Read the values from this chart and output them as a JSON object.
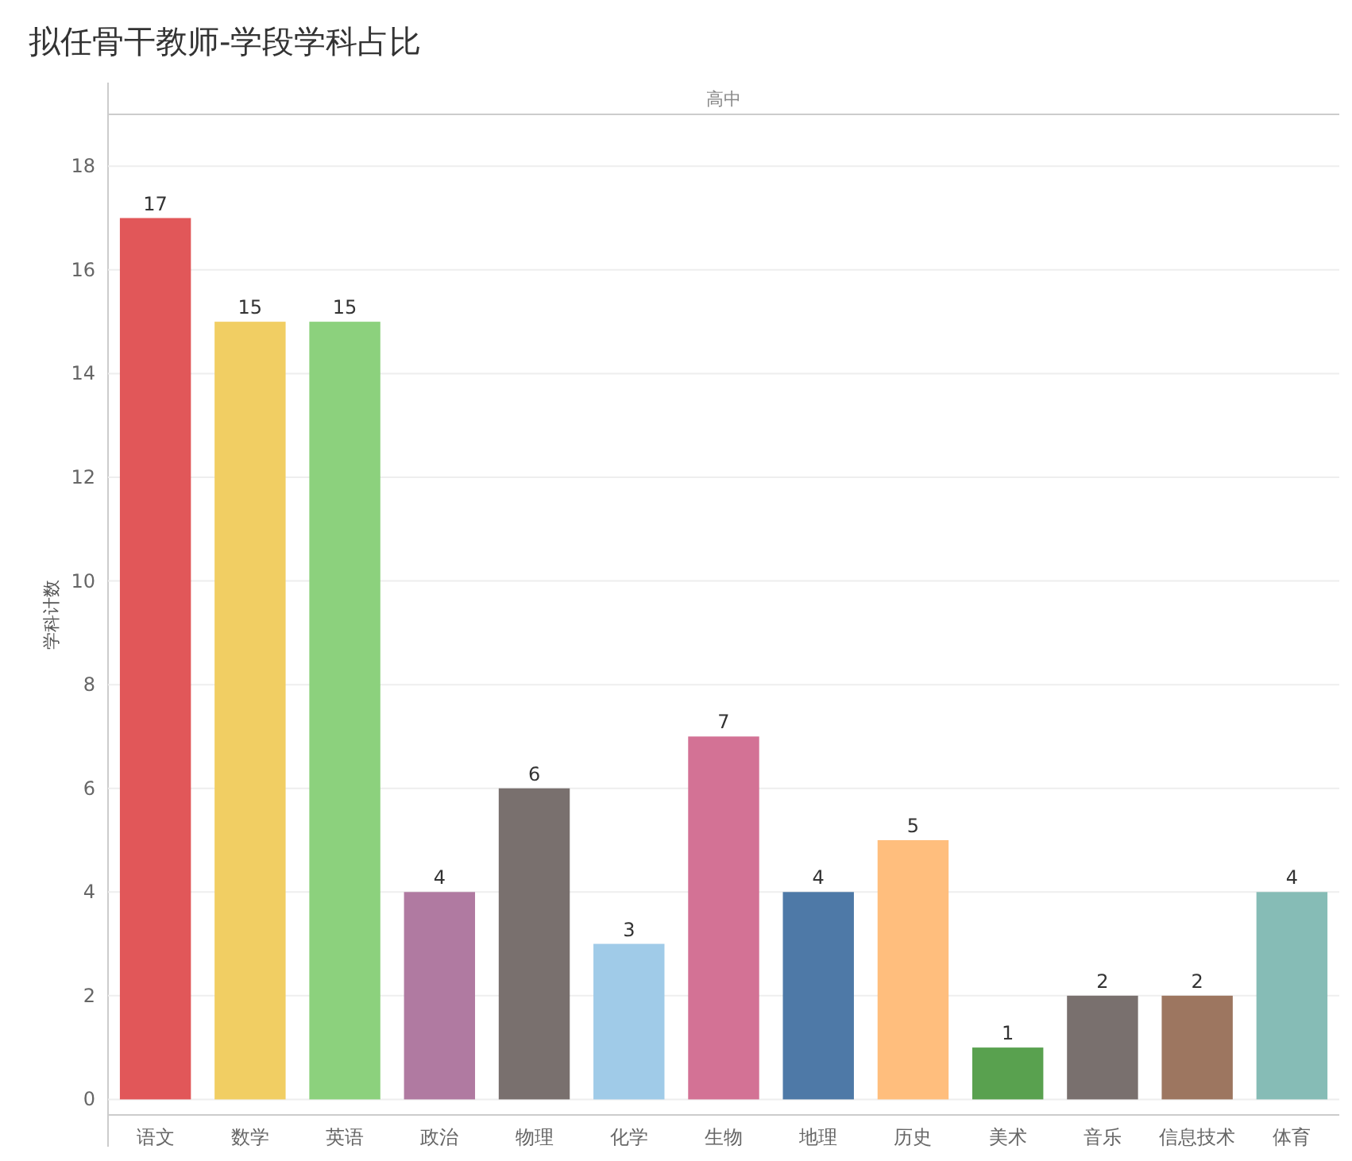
{
  "chart_data": {
    "type": "bar",
    "title": "拟任骨干教师-学段学科占比",
    "subtitle": "高中",
    "ylabel": "学科计数",
    "categories": [
      "语文",
      "数学",
      "英语",
      "政治",
      "物理",
      "化学",
      "生物",
      "地理",
      "历史",
      "美术",
      "音乐",
      "信息技术",
      "体育"
    ],
    "values": [
      17,
      15,
      15,
      4,
      6,
      3,
      7,
      4,
      5,
      1,
      2,
      2,
      4
    ],
    "colors": [
      "#e15759",
      "#f1ce63",
      "#8cd17d",
      "#b07aa1",
      "#79706e",
      "#a0cbe8",
      "#d37295",
      "#4e79a7",
      "#ffbe7d",
      "#59a14f",
      "#79706e",
      "#9d7660",
      "#86bcb6"
    ],
    "ylim": [
      -0.3,
      19
    ],
    "yticks": [
      0,
      2,
      4,
      6,
      8,
      10,
      12,
      14,
      16,
      18
    ],
    "grid": "y",
    "data_labels": true
  }
}
